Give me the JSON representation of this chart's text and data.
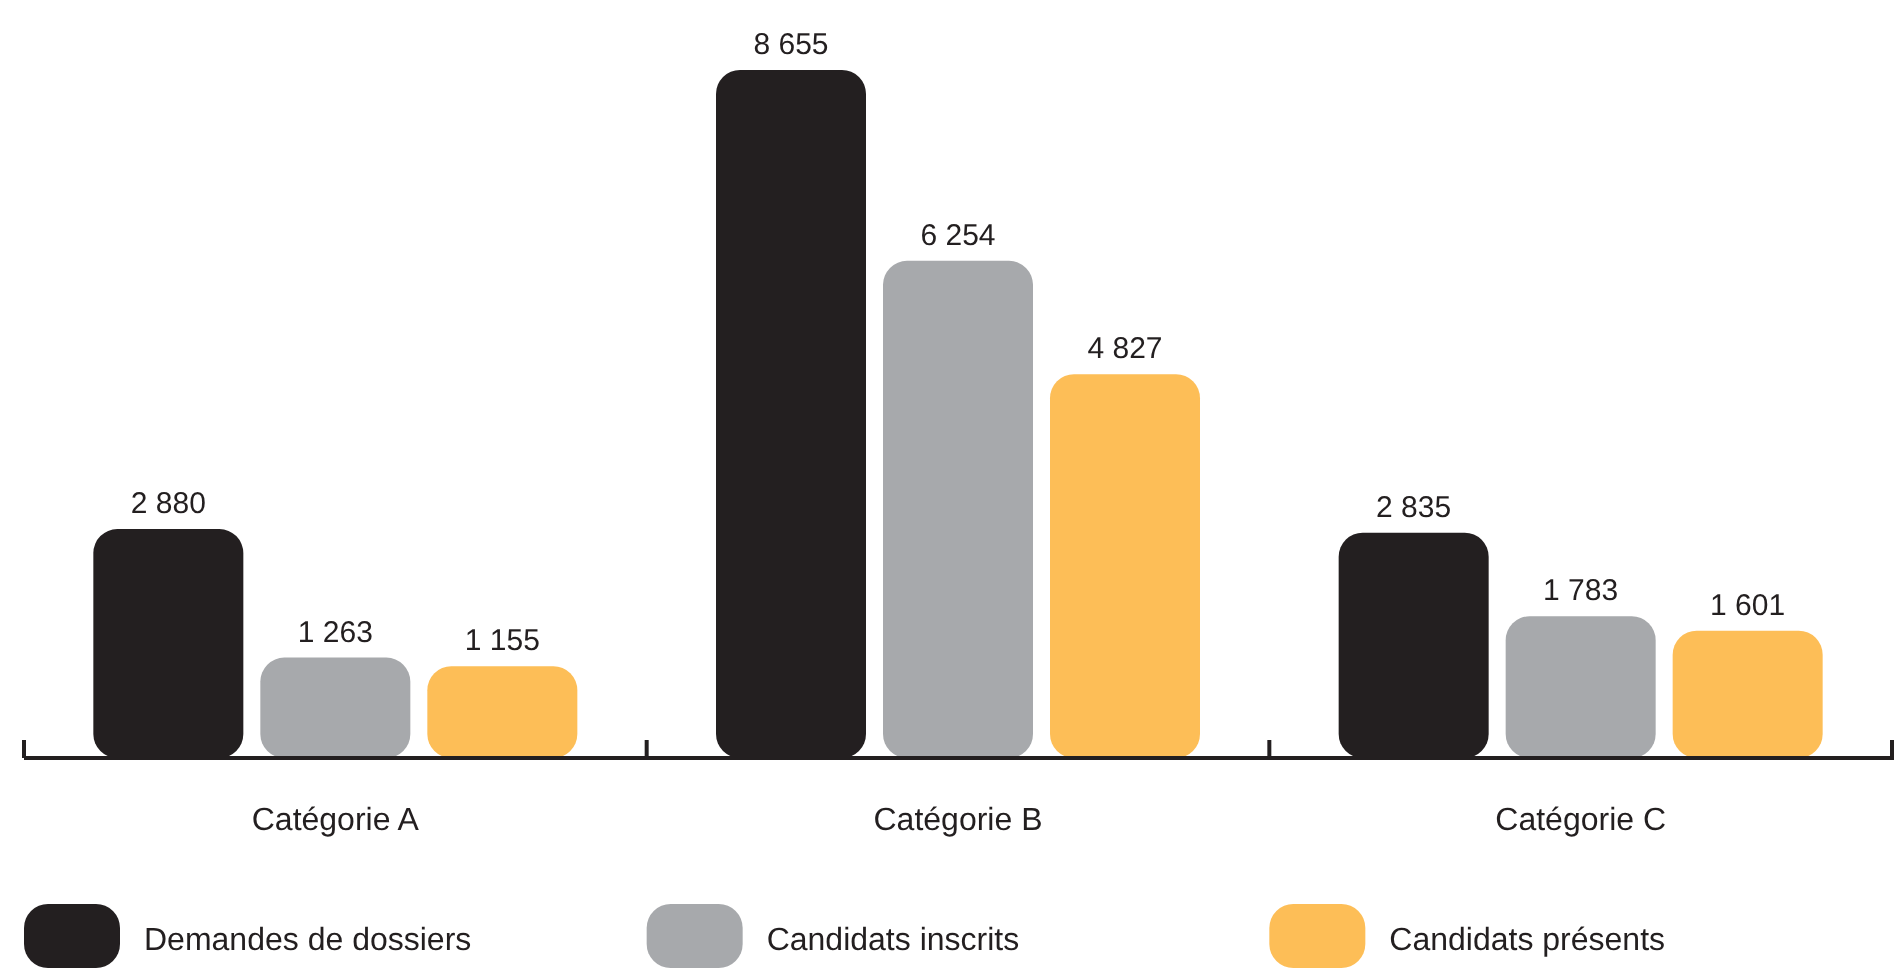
{
  "chart_data": {
    "type": "bar",
    "categories": [
      "Catégorie A",
      "Catégorie B",
      "Catégorie C"
    ],
    "series": [
      {
        "name": "Demandes de dossiers",
        "color": "#231f20",
        "values": [
          2880,
          8655,
          2835
        ],
        "value_labels": [
          "2 880",
          "8 655",
          "2 835"
        ]
      },
      {
        "name": "Candidats inscrits",
        "color": "#a7a9ac",
        "values": [
          1263,
          6254,
          1783
        ],
        "value_labels": [
          "1 263",
          "6 254",
          "1 783"
        ]
      },
      {
        "name": "Candidats présents",
        "color": "#fdbe57",
        "values": [
          1155,
          4827,
          1601
        ],
        "value_labels": [
          "1 155",
          "4 827",
          "1 601"
        ]
      }
    ],
    "legend": "bottom"
  }
}
